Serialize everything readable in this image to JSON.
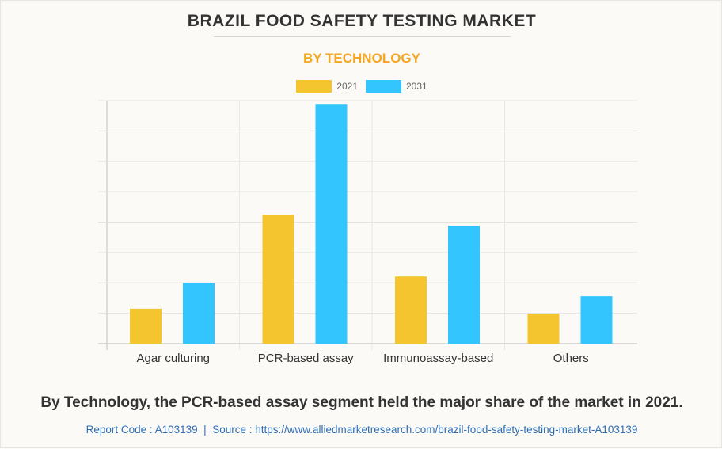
{
  "header": {
    "title": "BRAZIL FOOD SAFETY TESTING MARKET",
    "subtitle": "BY TECHNOLOGY"
  },
  "colors": {
    "series_2021": "#f4c52f",
    "series_2031": "#33c6fe",
    "subtitle": "#f5a623",
    "source_link": "#2e6eb5"
  },
  "chart_data": {
    "type": "bar",
    "title": "BRAZIL FOOD SAFETY TESTING MARKET",
    "subtitle": "BY TECHNOLOGY",
    "xlabel": "",
    "ylabel": "",
    "y_tick_labels_shown": false,
    "units_note": "Relative values in gridline units (no y-axis labels shown)",
    "ylim": [
      0,
      8
    ],
    "grid": true,
    "legend_position": "top-center",
    "categories": [
      "Agar culturing",
      "PCR-based assay",
      "Immunoassay-based",
      "Others"
    ],
    "series": [
      {
        "name": "2021",
        "values": [
          1.15,
          4.24,
          2.21,
          0.99
        ]
      },
      {
        "name": "2031",
        "values": [
          2.0,
          7.89,
          3.88,
          1.56
        ]
      }
    ]
  },
  "footer": {
    "caption": "By Technology, the PCR-based assay segment held the major share of the market in 2021.",
    "source": "Report Code : A103139  |  Source : https://www.alliedmarketresearch.com/brazil-food-safety-testing-market-A103139"
  }
}
